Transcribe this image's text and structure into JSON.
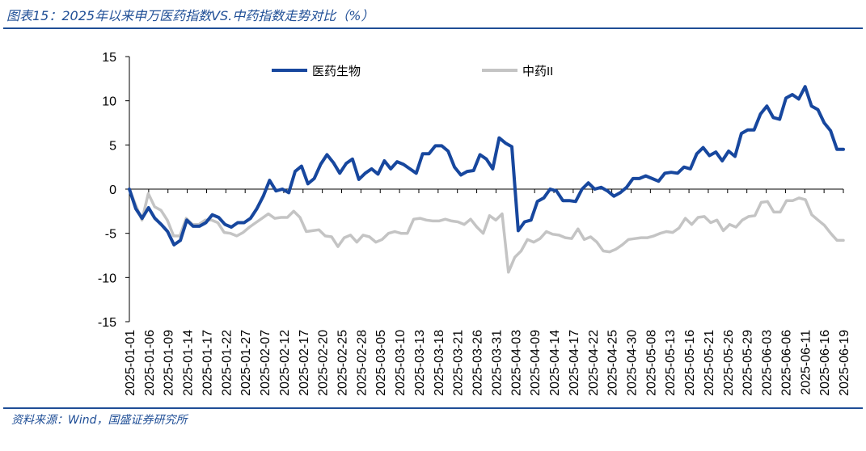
{
  "header": {
    "title": "图表15：2025年以来申万医药指数VS.中药指数走势对比（%）"
  },
  "footer": {
    "source": "资料来源：Wind，国盛证券研究所"
  },
  "chart_data": {
    "type": "line",
    "title": "",
    "xlabel": "",
    "ylabel": "",
    "ylim": [
      -15,
      15
    ],
    "yticks": [
      15,
      10,
      5,
      0,
      -5,
      -10,
      -15
    ],
    "grid": false,
    "legend_position": "top",
    "x_tick_labels": [
      "2025-01-01",
      "2025-01-06",
      "2025-01-09",
      "2025-01-14",
      "2025-01-17",
      "2025-01-22",
      "2025-01-27",
      "2025-02-07",
      "2025-02-12",
      "2025-02-17",
      "2025-02-20",
      "2025-02-25",
      "2025-02-28",
      "2025-03-05",
      "2025-03-10",
      "2025-03-13",
      "2025-03-18",
      "2025-03-21",
      "2025-03-26",
      "2025-03-31",
      "2025-04-03",
      "2025-04-09",
      "2025-04-14",
      "2025-04-17",
      "2025-04-22",
      "2025-04-25",
      "2025-04-30",
      "2025-05-08",
      "2025-05-13",
      "2025-05-16",
      "2025-05-21",
      "2025-05-26",
      "2025-05-29",
      "2025-06-03",
      "2025-06-06",
      "2025-06-11",
      "2025-06-16",
      "2025-06-19"
    ],
    "series": [
      {
        "name": "医药生物",
        "color": "#17479e",
        "values": [
          0,
          -2.2,
          -3.3,
          -2.1,
          -3.3,
          -4,
          -4.8,
          -6.3,
          -5.8,
          -3.5,
          -4.2,
          -4.2,
          -3.8,
          -2.9,
          -3.2,
          -4,
          -4.3,
          -3.8,
          -3.8,
          -3.3,
          -2.2,
          -0.8,
          1,
          -0.2,
          0,
          -0.4,
          2,
          2.6,
          0.6,
          1.2,
          2.8,
          3.9,
          3,
          1.8,
          2.9,
          3.4,
          1.1,
          1.8,
          2.3,
          1.7,
          3.2,
          2.3,
          3.1,
          2.8,
          2.3,
          1.8,
          4,
          4,
          4.9,
          4.9,
          4.3,
          2.5,
          1.6,
          2,
          2.1,
          3.9,
          3.4,
          2.3,
          5.8,
          5.2,
          4.8,
          -4.7,
          -3.7,
          -3.5,
          -1.4,
          -1,
          0,
          -0.2,
          -1.3,
          -1.3,
          -1.4,
          0,
          0.7,
          0,
          0.2,
          -0.2,
          -0.8,
          -0.4,
          0.2,
          1.2,
          1.2,
          1.5,
          1.2,
          0.9,
          1.8,
          1.9,
          1.8,
          2.5,
          2.3,
          4,
          4.7,
          3.8,
          4.2,
          3.2,
          4.3,
          3.7,
          6.3,
          6.7,
          6.7,
          8.5,
          9.4,
          8.1,
          7.9,
          10.3,
          10.7,
          10.2,
          11.6,
          9.4,
          9,
          7.5,
          6.6,
          4.5,
          4.5
        ]
      },
      {
        "name": "中药II",
        "color": "#c4c4c4",
        "values": [
          0,
          -1.8,
          -3.5,
          -0.5,
          -2,
          -2.4,
          -3.5,
          -5.3,
          -5.3,
          -3.3,
          -4,
          -4,
          -3.5,
          -3.5,
          -3.8,
          -4.9,
          -5,
          -5.3,
          -4.9,
          -4.3,
          -3.8,
          -3.3,
          -2.8,
          -3.3,
          -3.2,
          -3.2,
          -2.5,
          -3.2,
          -4.8,
          -4.7,
          -4.6,
          -5.3,
          -5.4,
          -6.5,
          -5.5,
          -5.2,
          -6,
          -5.2,
          -5.4,
          -6,
          -5.7,
          -5,
          -4.8,
          -5,
          -5,
          -3.4,
          -3.3,
          -3.5,
          -3.6,
          -3.6,
          -3.4,
          -3.6,
          -3.7,
          -4,
          -3.4,
          -4.3,
          -5,
          -3,
          -3.5,
          -2.8,
          -9.4,
          -7.7,
          -7,
          -5.7,
          -6,
          -5.6,
          -4.8,
          -5.1,
          -5.2,
          -5.5,
          -5.6,
          -4.5,
          -5.7,
          -5.4,
          -6,
          -7,
          -7.1,
          -6.8,
          -6.3,
          -5.7,
          -5.6,
          -5.5,
          -5.5,
          -5.3,
          -5,
          -4.8,
          -4.9,
          -4.4,
          -3.3,
          -4,
          -3.2,
          -3.1,
          -3.8,
          -3.5,
          -4.7,
          -4,
          -4.3,
          -3.5,
          -3.1,
          -3,
          -1.5,
          -1.4,
          -2.6,
          -2.6,
          -1.3,
          -1.3,
          -1,
          -1.2,
          -2.9,
          -3.5,
          -4.1,
          -5,
          -5.8,
          -5.8
        ]
      }
    ]
  }
}
